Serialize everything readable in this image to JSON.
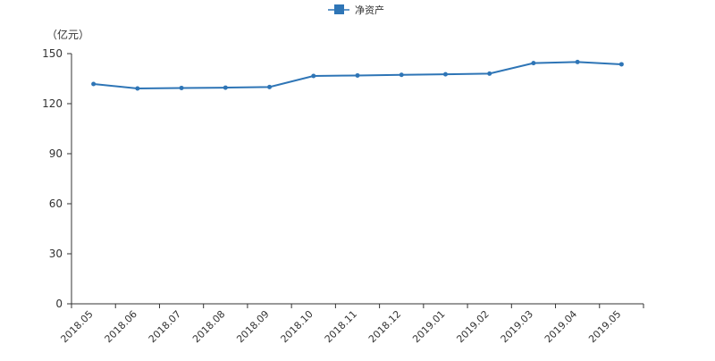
{
  "legend": {
    "label": "净资产",
    "color": "#2e75b6",
    "position": "top-center"
  },
  "y_unit": "（亿元）",
  "chart_data": {
    "type": "line",
    "title": "",
    "xlabel": "",
    "ylabel": "（亿元）",
    "categories": [
      "2018.05",
      "2018.06",
      "2018.07",
      "2018.08",
      "2018.09",
      "2018.10",
      "2018.11",
      "2018.12",
      "2019.01",
      "2019.02",
      "2019.03",
      "2019.04",
      "2019.05"
    ],
    "series": [
      {
        "name": "净资产",
        "color": "#2e75b6",
        "values": [
          131.8,
          129.1,
          129.4,
          129.6,
          130.0,
          136.6,
          136.9,
          137.3,
          137.6,
          138.0,
          144.3,
          145.0,
          143.6
        ]
      }
    ],
    "ylim": [
      0,
      150
    ],
    "yticks": [
      0,
      30,
      60,
      90,
      120,
      150
    ],
    "grid": false,
    "legend_position": "top-center"
  }
}
